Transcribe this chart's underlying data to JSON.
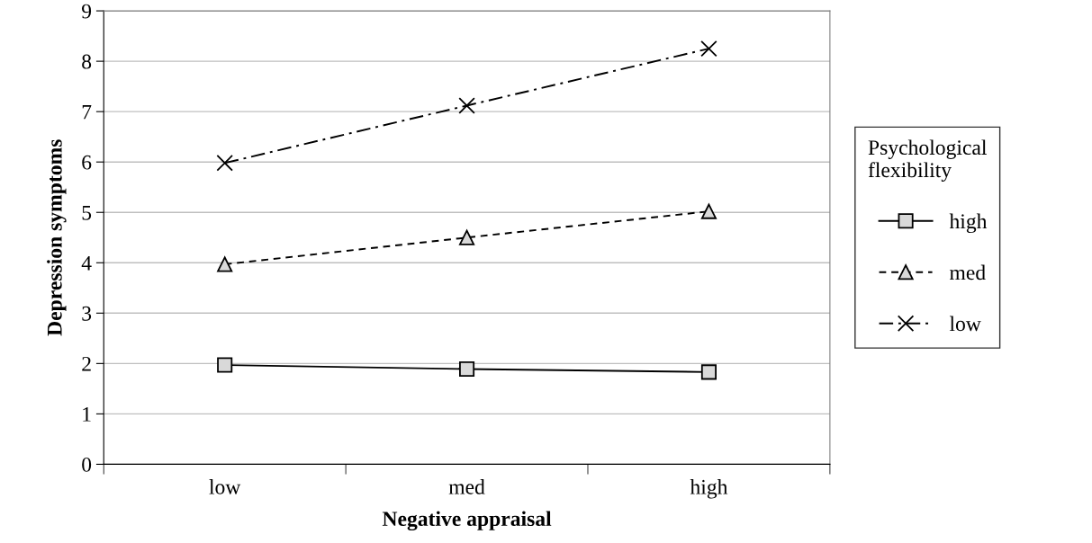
{
  "chart_data": {
    "type": "line",
    "xlabel": "Negative appraisal",
    "ylabel": "Depression symptoms",
    "legend_title": "Psychological flexibility",
    "categories": [
      "low",
      "med",
      "high"
    ],
    "series": [
      {
        "name": "high",
        "color": "#000000",
        "values": [
          1.97,
          1.89,
          1.83
        ],
        "marker": "square",
        "line_style": "solid"
      },
      {
        "name": "med",
        "color": "#000000",
        "values": [
          3.97,
          4.5,
          5.02
        ],
        "marker": "triangle",
        "line_style": "dashed"
      },
      {
        "name": "low",
        "color": "#000000",
        "values": [
          5.98,
          7.12,
          8.25
        ],
        "marker": "cross",
        "line_style": "dashdot"
      }
    ],
    "ylim": [
      0,
      9
    ],
    "yticks": [
      0,
      1,
      2,
      3,
      4,
      5,
      6,
      7,
      8,
      9
    ],
    "grid": "y",
    "legend": "right"
  }
}
